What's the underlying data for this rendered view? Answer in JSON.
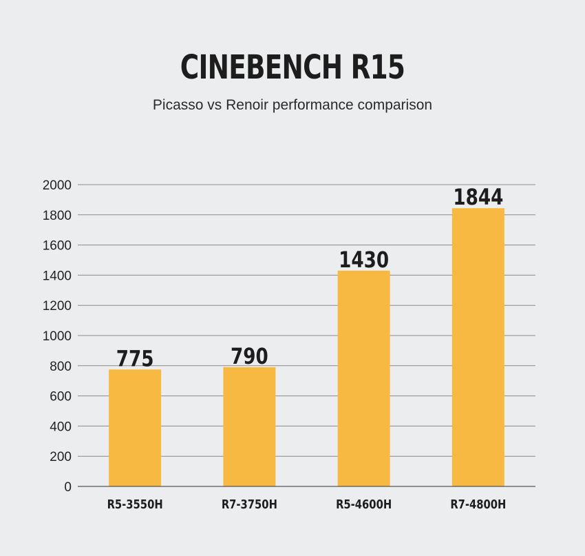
{
  "chart_data": {
    "type": "bar",
    "title": "CINEBENCH R15",
    "subtitle": "Picasso vs Renoir performance comparison",
    "categories": [
      "R5-3550H",
      "R7-3750H",
      "R5-4600H",
      "R7-4800H"
    ],
    "values": [
      775,
      790,
      1430,
      1844
    ],
    "data_labels": [
      "775",
      "790",
      "1430",
      "1844"
    ],
    "yticks": [
      "0",
      "200",
      "400",
      "600",
      "800",
      "1000",
      "1200",
      "1400",
      "1600",
      "1800",
      "2000"
    ],
    "ylim": [
      0,
      2000
    ],
    "xlabel": "",
    "ylabel": "",
    "grid": true,
    "legend": "none",
    "bar_color": "#f7b941"
  }
}
